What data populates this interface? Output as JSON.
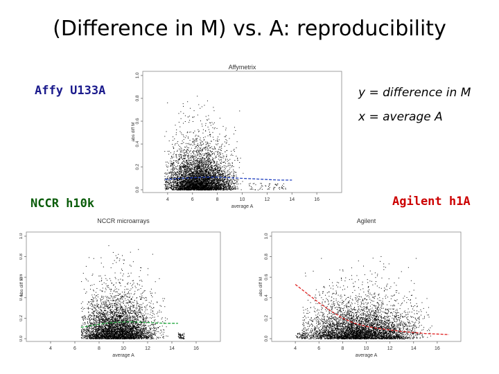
{
  "slide": {
    "title": "(Difference in M) vs. A: reproducibility",
    "label_affy": "Affy U133A",
    "label_nccr": "NCCR h10k",
    "label_agilent": "Agilent h1A",
    "note_y": "y = difference in M",
    "note_x": "x = average A",
    "colors": {
      "label_affy": "#1a1a8c",
      "label_nccr": "#0a5c0a",
      "label_agilent": "#cc0000"
    }
  },
  "chart_data": [
    {
      "type": "scatter",
      "title": "Affymetrix",
      "xlabel": "average A",
      "ylabel": "abs diff M",
      "xlim": [
        2,
        18
      ],
      "ylim": [
        0,
        1
      ],
      "xticks": [
        "4",
        "6",
        "8",
        "10",
        "12",
        "14",
        "16"
      ],
      "yticks": [
        "0.0",
        "0.2",
        "0.4",
        "0.6",
        "0.8",
        "1.0"
      ],
      "point_color": "#000000",
      "point_cloud": {
        "x_range": [
          3.7,
          10.5
        ],
        "x_mode": 6.5,
        "y_typical": 0.12,
        "y_max": 1.0,
        "sparse_x_range": [
          10.5,
          13.5
        ]
      },
      "series": [
        {
          "name": "",
          "color": "#1f3fbf",
          "x": [
            3.8,
            5,
            6,
            7,
            8,
            9,
            10,
            11,
            12,
            13,
            14
          ],
          "y": [
            0.09,
            0.1,
            0.105,
            0.11,
            0.11,
            0.105,
            0.1,
            0.095,
            0.09,
            0.085,
            0.085
          ]
        }
      ]
    },
    {
      "type": "scatter",
      "title": "NCCR microarrays",
      "xlabel": "average A",
      "ylabel": "abs diff M",
      "xlim": [
        2,
        18
      ],
      "ylim": [
        0,
        1
      ],
      "xticks": [
        "4",
        "6",
        "8",
        "10",
        "12",
        "14",
        "16"
      ],
      "yticks": [
        "0.0",
        "0.2",
        "0.4",
        "0.6",
        "0.8",
        "1.0"
      ],
      "point_color": "#000000",
      "point_cloud": {
        "x_range": [
          6.5,
          14.5
        ],
        "x_mode": 9.5,
        "y_typical": 0.14,
        "y_max": 1.0,
        "sparse_x_range": [
          14.5,
          15
        ]
      },
      "series": [
        {
          "name": "",
          "color": "#1fa83c",
          "x": [
            6.5,
            7.5,
            8.5,
            9.5,
            10.5,
            11.5,
            12.5,
            13.5,
            14.5
          ],
          "y": [
            0.11,
            0.13,
            0.15,
            0.16,
            0.165,
            0.16,
            0.155,
            0.15,
            0.15
          ]
        }
      ]
    },
    {
      "type": "scatter",
      "title": "Agilent",
      "xlabel": "average A",
      "ylabel": "abs diff M",
      "xlim": [
        2,
        18
      ],
      "ylim": [
        0,
        1
      ],
      "xticks": [
        "4",
        "6",
        "8",
        "10",
        "12",
        "14",
        "16"
      ],
      "yticks": [
        "0.0",
        "0.2",
        "0.4",
        "0.6",
        "0.8",
        "1.0"
      ],
      "point_color": "#000000",
      "point_cloud": {
        "x_range": [
          4.5,
          16.5
        ],
        "x_mode": 9.5,
        "y_typical": 0.12,
        "y_max": 1.0,
        "sparse_x_range": [
          4,
          5
        ]
      },
      "series": [
        {
          "name": "",
          "color": "#e02020",
          "x": [
            4,
            5,
            6,
            7,
            8,
            9,
            10,
            11,
            12,
            13,
            14,
            15,
            16,
            17
          ],
          "y": [
            0.53,
            0.44,
            0.35,
            0.27,
            0.2,
            0.15,
            0.12,
            0.1,
            0.085,
            0.07,
            0.06,
            0.05,
            0.045,
            0.04
          ]
        }
      ]
    }
  ]
}
